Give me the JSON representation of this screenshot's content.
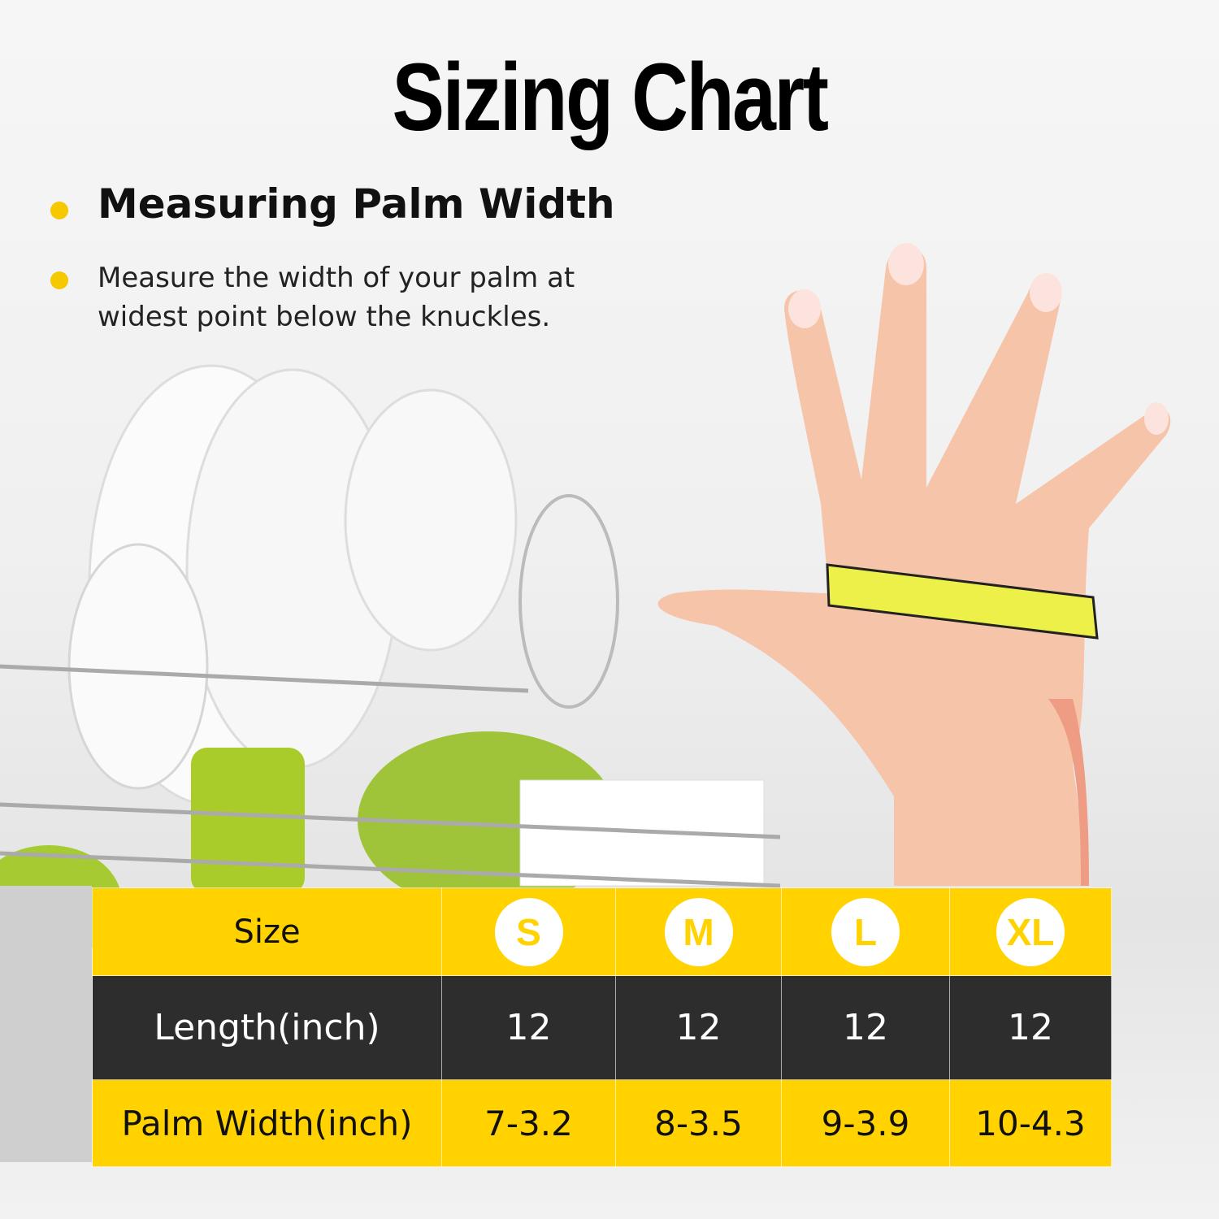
{
  "title": "Sizing Chart",
  "heading": "Measuring Palm Width",
  "description": "Measure the width of your palm at widest point below the knuckles.",
  "colors": {
    "accent": "#ffd200",
    "dark_row": "#1e1e1e",
    "skin": "#f6c4a8",
    "tape": "#eef04a"
  },
  "table": {
    "row_labels": [
      "Size",
      "Length(inch)",
      "Palm Width(inch)"
    ],
    "sizes": [
      "S",
      "M",
      "L",
      "XL"
    ],
    "length": [
      "12",
      "12",
      "12",
      "12"
    ],
    "palm_width": [
      "7-3.2",
      "8-3.5",
      "9-3.9",
      "10-4.3"
    ]
  }
}
